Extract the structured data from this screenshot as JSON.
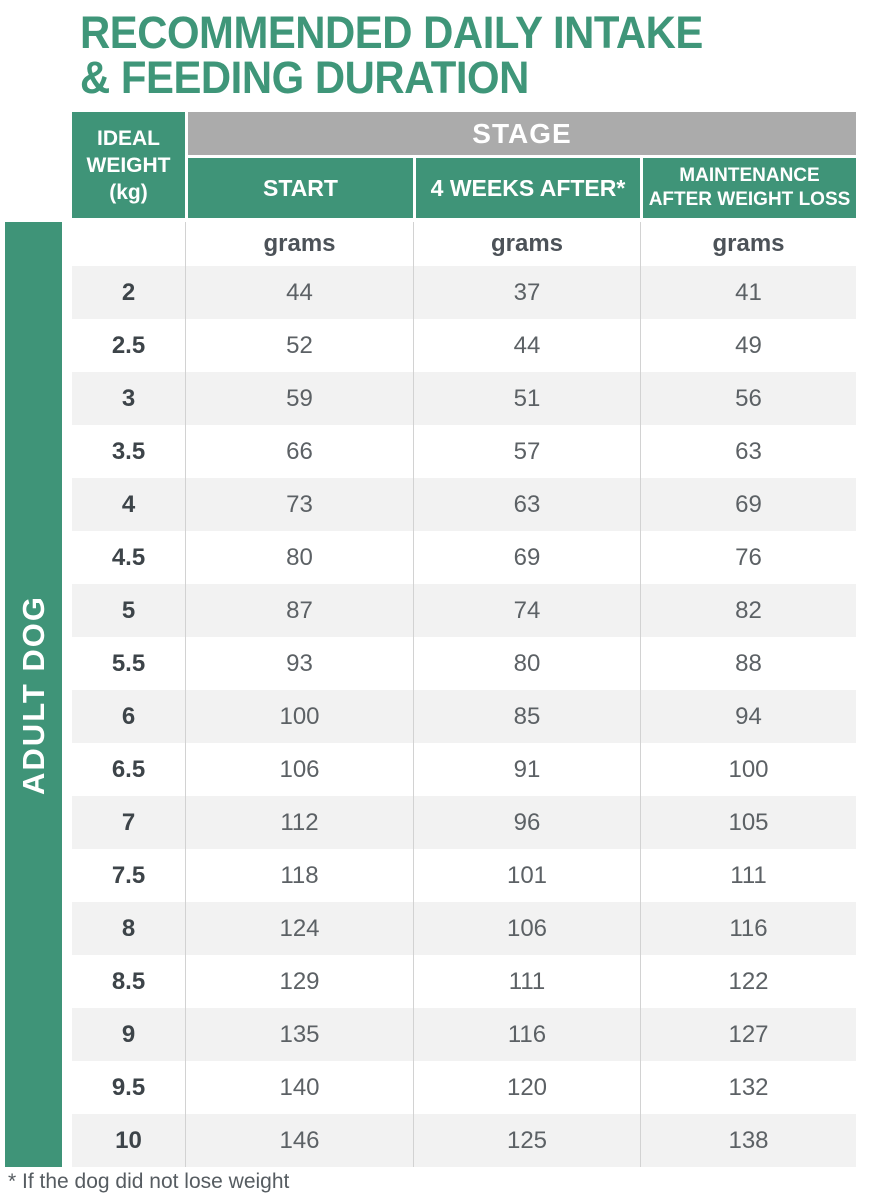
{
  "title": {
    "line1": "RECOMMENDED DAILY INTAKE",
    "line2": "& FEEDING DURATION"
  },
  "sidebar": {
    "label": "ADULT DOG"
  },
  "table": {
    "corner_header": {
      "line1": "IDEAL",
      "line2": "WEIGHT",
      "line3": "(kg)"
    },
    "stage_header": "STAGE",
    "columns": [
      "START",
      "4 WEEKS AFTER*",
      "MAINTENANCE AFTER WEIGHT LOSS"
    ],
    "unit": "grams",
    "rows": [
      {
        "weight": "2",
        "values": [
          "44",
          "37",
          "41"
        ]
      },
      {
        "weight": "2.5",
        "values": [
          "52",
          "44",
          "49"
        ]
      },
      {
        "weight": "3",
        "values": [
          "59",
          "51",
          "56"
        ]
      },
      {
        "weight": "3.5",
        "values": [
          "66",
          "57",
          "63"
        ]
      },
      {
        "weight": "4",
        "values": [
          "73",
          "63",
          "69"
        ]
      },
      {
        "weight": "4.5",
        "values": [
          "80",
          "69",
          "76"
        ]
      },
      {
        "weight": "5",
        "values": [
          "87",
          "74",
          "82"
        ]
      },
      {
        "weight": "5.5",
        "values": [
          "93",
          "80",
          "88"
        ]
      },
      {
        "weight": "6",
        "values": [
          "100",
          "85",
          "94"
        ]
      },
      {
        "weight": "6.5",
        "values": [
          "106",
          "91",
          "100"
        ]
      },
      {
        "weight": "7",
        "values": [
          "112",
          "96",
          "105"
        ]
      },
      {
        "weight": "7.5",
        "values": [
          "118",
          "101",
          "111"
        ]
      },
      {
        "weight": "8",
        "values": [
          "124",
          "106",
          "116"
        ]
      },
      {
        "weight": "8.5",
        "values": [
          "129",
          "111",
          "122"
        ]
      },
      {
        "weight": "9",
        "values": [
          "135",
          "116",
          "127"
        ]
      },
      {
        "weight": "9.5",
        "values": [
          "140",
          "120",
          "132"
        ]
      },
      {
        "weight": "10",
        "values": [
          "146",
          "125",
          "138"
        ]
      }
    ]
  },
  "footnote": "* If the dog did not lose weight",
  "colors": {
    "green": "#3f9478",
    "title_green": "#3f9679",
    "stage_gray": "#ababab",
    "row_stripe": "#f2f2f2",
    "value_text": "#5c6165"
  }
}
